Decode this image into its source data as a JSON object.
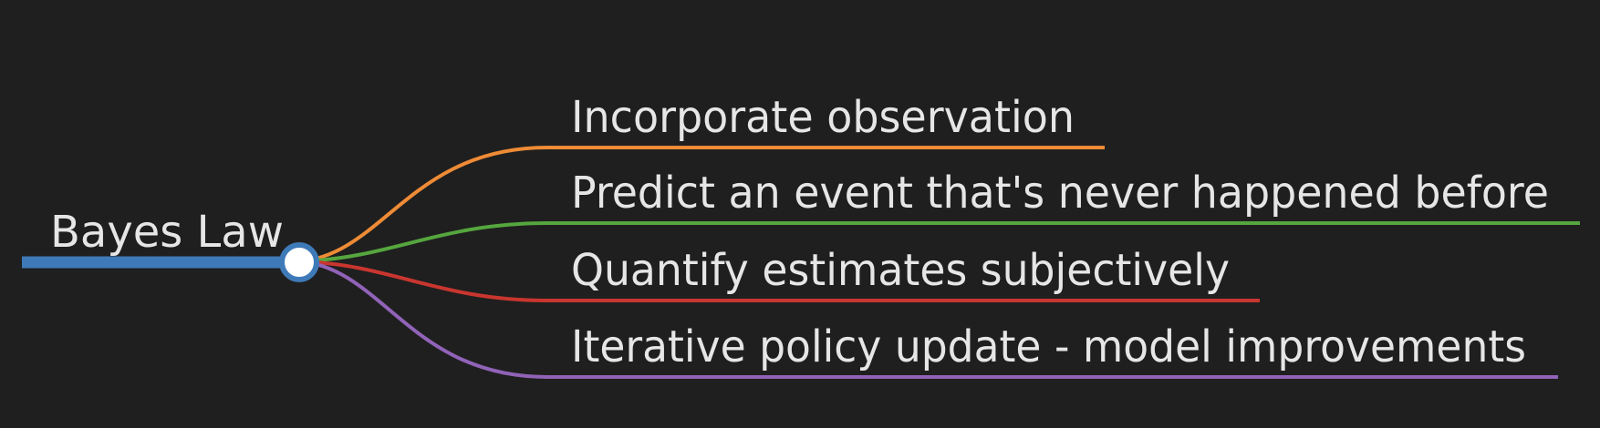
{
  "root": {
    "label": "Bayes Law",
    "color": "#3e7ab8"
  },
  "branches": [
    {
      "label": "Incorporate observation",
      "color": "#ee8b36"
    },
    {
      "label": "Predict an event that's never happened before",
      "color": "#55a63e"
    },
    {
      "label": "Quantify estimates subjectively",
      "color": "#c9362f"
    },
    {
      "label": "Iterative policy update - model improvements",
      "color": "#9163b8"
    }
  ]
}
